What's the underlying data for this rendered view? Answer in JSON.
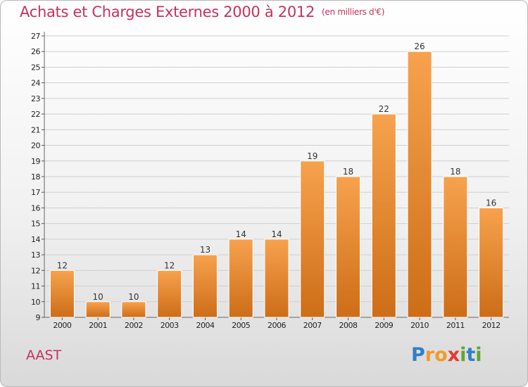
{
  "title": "Achats et Charges Externes 2000 à 2012",
  "subtitle": "(en milliers d'€)",
  "footer_label": "AAST",
  "logo": {
    "letters": [
      {
        "char": "P",
        "color": "#2e7fc7"
      },
      {
        "char": "r",
        "color": "#f39a2b"
      },
      {
        "char": "o",
        "color": "#f39a2b"
      },
      {
        "char": "x",
        "color": "#e6392b"
      },
      {
        "char": "i",
        "color": "#5aa832"
      },
      {
        "char": "t",
        "color": "#2e7fc7"
      },
      {
        "char": "i",
        "color": "#5aa832"
      }
    ]
  },
  "colors": {
    "bar_top": "#f7a24e",
    "bar_bottom": "#cd6d17",
    "title": "#c8305c",
    "grid": "#cfcfcf"
  },
  "chart_data": {
    "type": "bar",
    "title": "Achats et Charges Externes 2000 à 2012",
    "subtitle": "(en milliers d'€)",
    "categories": [
      "2000",
      "2001",
      "2002",
      "2003",
      "2004",
      "2005",
      "2006",
      "2007",
      "2008",
      "2009",
      "2010",
      "2011",
      "2012"
    ],
    "values": [
      12,
      10,
      10,
      12,
      13,
      14,
      14,
      19,
      18,
      22,
      26,
      18,
      16
    ],
    "ylim": [
      9,
      27
    ],
    "yticks": [
      9,
      10,
      11,
      12,
      13,
      14,
      15,
      16,
      17,
      18,
      19,
      20,
      21,
      22,
      23,
      24,
      25,
      26,
      27
    ],
    "grid": true,
    "data_labels": true
  }
}
